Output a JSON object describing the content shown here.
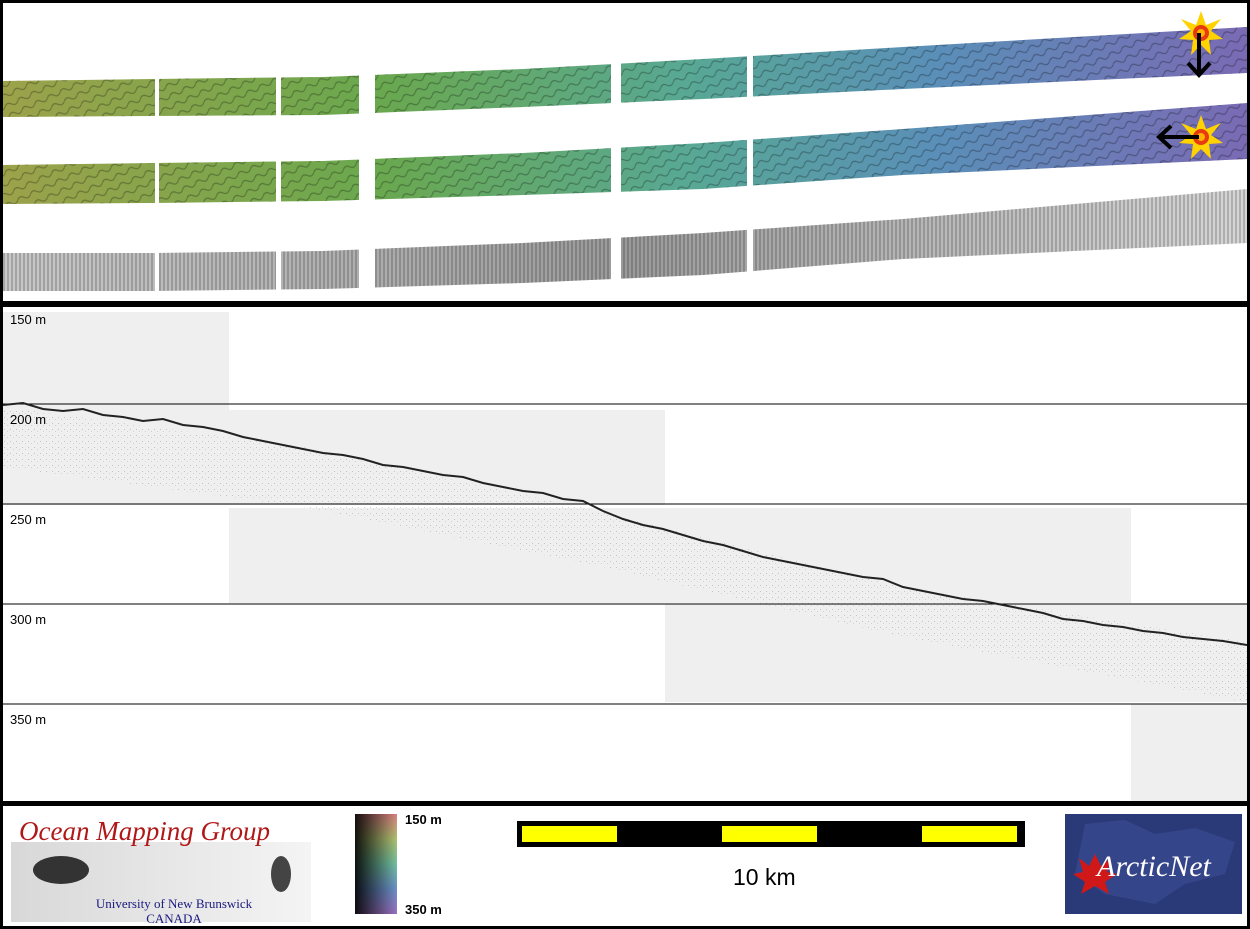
{
  "profile": {
    "depth_labels": [
      "150 m",
      "200 m",
      "250 m",
      "300 m",
      "350 m"
    ]
  },
  "swaths": {
    "rows": [
      "bathymetry-sun-north",
      "bathymetry-sun-east",
      "backscatter"
    ],
    "sun_icons": [
      "sun-icon-north",
      "sun-icon-east"
    ]
  },
  "footer": {
    "logo_title": "Ocean Mapping Group",
    "logo_sub_1": "University of New Brunswick",
    "logo_sub_2": "CANADA",
    "colorbar_top": "150 m",
    "colorbar_bottom": "350 m",
    "scale_label": "10 km",
    "partner_logo": "ArcticNet"
  },
  "colors": {
    "frame": "#000000",
    "scale_yellow": "#ffff00",
    "logo_red": "#b01818"
  }
}
